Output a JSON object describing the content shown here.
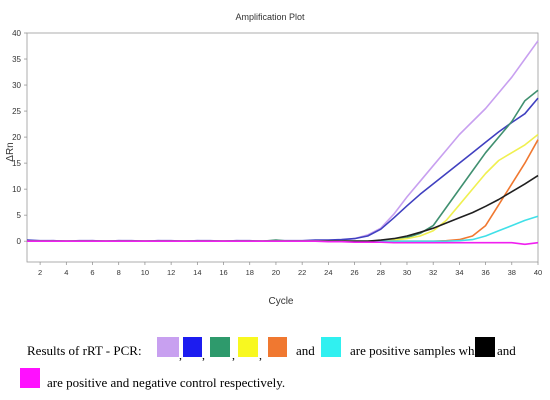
{
  "chart_data": {
    "type": "line",
    "title": "Amplification Plot",
    "xlabel": "Cycle",
    "ylabel": "ΔRn",
    "xlim": [
      1,
      40
    ],
    "ylim": [
      -4,
      40
    ],
    "xticks": [
      "2",
      "4",
      "6",
      "8",
      "10",
      "12",
      "14",
      "16",
      "18",
      "20",
      "22",
      "24",
      "26",
      "28",
      "30",
      "32",
      "34",
      "36",
      "38",
      "40"
    ],
    "yticks": [
      "0",
      "5",
      "10",
      "15",
      "20",
      "25",
      "30",
      "35",
      "40"
    ],
    "grid": false,
    "series": [
      {
        "color": "#c8a0f0",
        "x": [
          1,
          2,
          3,
          4,
          5,
          6,
          7,
          8,
          9,
          10,
          11,
          12,
          13,
          14,
          15,
          16,
          17,
          18,
          19,
          20,
          21,
          22,
          23,
          24,
          25,
          26,
          27,
          28,
          29,
          30,
          31,
          32,
          33,
          34,
          35,
          36,
          37,
          38,
          39,
          40
        ],
        "y": [
          0.1,
          0.0,
          0.1,
          0.0,
          0.0,
          0.1,
          0.0,
          0.1,
          0.0,
          0.0,
          0.1,
          0.0,
          0.0,
          0.1,
          0.0,
          0.0,
          0.1,
          0.0,
          0.0,
          0.1,
          0.0,
          0.0,
          0.1,
          0.1,
          0.2,
          0.5,
          1.2,
          2.5,
          5.2,
          8.5,
          11.5,
          14.5,
          17.5,
          20.5,
          23.0,
          25.5,
          28.5,
          31.5,
          35.0,
          38.5
        ]
      },
      {
        "color": "#4040c0",
        "x": [
          1,
          2,
          3,
          4,
          5,
          6,
          7,
          8,
          9,
          10,
          11,
          12,
          13,
          14,
          15,
          16,
          17,
          18,
          19,
          20,
          21,
          22,
          23,
          24,
          25,
          26,
          27,
          28,
          29,
          30,
          31,
          32,
          33,
          34,
          35,
          36,
          37,
          38,
          39,
          40
        ],
        "y": [
          0.2,
          0.1,
          0.1,
          0.0,
          0.1,
          0.1,
          0.0,
          0.1,
          0.1,
          0.0,
          0.1,
          0.1,
          0.0,
          0.1,
          0.1,
          0.0,
          0.1,
          0.1,
          0.0,
          0.1,
          0.1,
          0.1,
          0.2,
          0.2,
          0.3,
          0.5,
          1.0,
          2.3,
          4.5,
          6.8,
          9.0,
          11.0,
          13.0,
          15.0,
          17.0,
          19.0,
          21.0,
          22.8,
          24.5,
          27.5
        ]
      },
      {
        "color": "#409070",
        "x": [
          1,
          2,
          3,
          4,
          5,
          6,
          7,
          8,
          9,
          10,
          11,
          12,
          13,
          14,
          15,
          16,
          17,
          18,
          19,
          20,
          21,
          22,
          23,
          24,
          25,
          26,
          27,
          28,
          29,
          30,
          31,
          32,
          33,
          34,
          35,
          36,
          37,
          38,
          39,
          40
        ],
        "y": [
          0.0,
          0.0,
          0.0,
          0.0,
          0.0,
          0.0,
          0.0,
          0.0,
          0.0,
          0.0,
          0.0,
          0.0,
          0.0,
          0.0,
          0.0,
          0.0,
          0.0,
          0.0,
          0.0,
          0.2,
          0.0,
          0.0,
          0.0,
          0.0,
          0.0,
          0.0,
          0.0,
          0.1,
          0.3,
          0.7,
          1.5,
          3.0,
          6.5,
          10.0,
          13.5,
          17.0,
          20.0,
          23.0,
          27.0,
          29.0
        ]
      },
      {
        "color": "#f0f050",
        "x": [
          1,
          2,
          3,
          4,
          5,
          6,
          7,
          8,
          9,
          10,
          11,
          12,
          13,
          14,
          15,
          16,
          17,
          18,
          19,
          20,
          21,
          22,
          23,
          24,
          25,
          26,
          27,
          28,
          29,
          30,
          31,
          32,
          33,
          34,
          35,
          36,
          37,
          38,
          39,
          40
        ],
        "y": [
          0.0,
          0.0,
          0.0,
          0.0,
          0.0,
          0.0,
          0.0,
          0.0,
          0.0,
          0.0,
          0.0,
          0.0,
          0.0,
          0.0,
          0.0,
          0.0,
          0.0,
          0.0,
          0.0,
          0.0,
          0.0,
          0.0,
          0.0,
          0.0,
          0.0,
          0.0,
          0.0,
          0.1,
          0.2,
          0.5,
          1.0,
          2.0,
          4.0,
          7.0,
          10.0,
          13.0,
          15.5,
          17.0,
          18.5,
          20.5
        ]
      },
      {
        "color": "#f07830",
        "x": [
          1,
          2,
          3,
          4,
          5,
          6,
          7,
          8,
          9,
          10,
          11,
          12,
          13,
          14,
          15,
          16,
          17,
          18,
          19,
          20,
          21,
          22,
          23,
          24,
          25,
          26,
          27,
          28,
          29,
          30,
          31,
          32,
          33,
          34,
          35,
          36,
          37,
          38,
          39,
          40
        ],
        "y": [
          0.0,
          0.0,
          0.0,
          0.0,
          0.0,
          0.0,
          0.0,
          0.0,
          0.0,
          0.0,
          0.0,
          0.0,
          0.0,
          0.0,
          0.0,
          0.0,
          0.0,
          0.0,
          0.0,
          0.0,
          0.0,
          0.0,
          0.0,
          0.0,
          0.0,
          0.0,
          0.0,
          0.0,
          0.0,
          0.0,
          0.0,
          0.0,
          0.1,
          0.3,
          1.0,
          3.0,
          7.0,
          11.0,
          15.0,
          19.5
        ]
      },
      {
        "color": "#40e0e8",
        "x": [
          1,
          2,
          3,
          4,
          5,
          6,
          7,
          8,
          9,
          10,
          11,
          12,
          13,
          14,
          15,
          16,
          17,
          18,
          19,
          20,
          21,
          22,
          23,
          24,
          25,
          26,
          27,
          28,
          29,
          30,
          31,
          32,
          33,
          34,
          35,
          36,
          37,
          38,
          39,
          40
        ],
        "y": [
          0.0,
          0.0,
          0.0,
          0.0,
          0.0,
          0.0,
          0.0,
          0.0,
          0.0,
          0.0,
          0.0,
          0.0,
          0.0,
          0.0,
          0.0,
          0.0,
          0.0,
          0.0,
          0.0,
          0.0,
          0.0,
          0.0,
          0.0,
          0.0,
          0.0,
          0.0,
          0.0,
          0.0,
          0.0,
          0.0,
          0.0,
          0.0,
          0.0,
          0.1,
          0.3,
          1.0,
          2.0,
          3.0,
          4.0,
          4.8
        ]
      },
      {
        "color": "#202020",
        "x": [
          1,
          2,
          3,
          4,
          5,
          6,
          7,
          8,
          9,
          10,
          11,
          12,
          13,
          14,
          15,
          16,
          17,
          18,
          19,
          20,
          21,
          22,
          23,
          24,
          25,
          26,
          27,
          28,
          29,
          30,
          31,
          32,
          33,
          34,
          35,
          36,
          37,
          38,
          39,
          40
        ],
        "y": [
          0.0,
          0.0,
          0.0,
          0.0,
          0.0,
          0.0,
          0.0,
          0.0,
          0.0,
          0.0,
          0.0,
          0.0,
          0.0,
          0.0,
          0.0,
          0.0,
          0.0,
          0.0,
          0.0,
          0.0,
          0.0,
          0.0,
          0.0,
          0.0,
          0.0,
          0.0,
          0.0,
          0.2,
          0.5,
          1.0,
          1.7,
          2.5,
          3.5,
          4.5,
          5.5,
          6.7,
          8.0,
          9.5,
          11.0,
          12.6
        ]
      },
      {
        "color": "#f020f0",
        "x": [
          1,
          2,
          3,
          4,
          5,
          6,
          7,
          8,
          9,
          10,
          11,
          12,
          13,
          14,
          15,
          16,
          17,
          18,
          19,
          20,
          21,
          22,
          23,
          24,
          25,
          26,
          27,
          28,
          29,
          30,
          31,
          32,
          33,
          34,
          35,
          36,
          37,
          38,
          39,
          40
        ],
        "y": [
          0.0,
          0.0,
          0.0,
          0.0,
          0.0,
          0.0,
          0.0,
          0.0,
          0.0,
          0.0,
          0.0,
          0.0,
          0.0,
          0.0,
          0.0,
          0.0,
          0.0,
          0.0,
          0.0,
          0.0,
          0.0,
          0.0,
          0.0,
          -0.1,
          -0.1,
          -0.2,
          -0.2,
          -0.2,
          -0.3,
          -0.3,
          -0.3,
          -0.3,
          -0.3,
          -0.3,
          -0.3,
          -0.3,
          -0.3,
          -0.3,
          -0.6,
          -0.3
        ]
      }
    ]
  },
  "caption": {
    "line1": {
      "prefix": "Results    of rRT    - PCR:",
      "sep1": ",",
      "sep2": ",",
      "sep3": ",",
      "sep4": ",",
      "and1": "and",
      "text_positive": "are positive samples while",
      "and2": "and"
    },
    "line2": {
      "text": "are   positive and negative control respectively."
    },
    "swatch_colors": {
      "lavender": "#c8a0f0",
      "blue": "#1c1cf0",
      "green": "#2e9a6c",
      "yellow": "#f8f820",
      "orange": "#f07830",
      "cyan": "#30f0f0",
      "black": "#000000",
      "magenta": "#ff10ff"
    }
  }
}
